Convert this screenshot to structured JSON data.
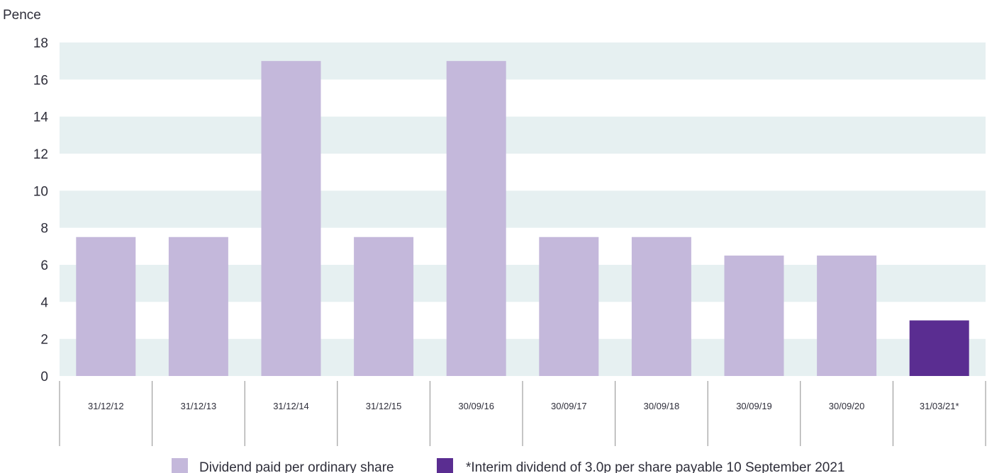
{
  "chart_data": {
    "type": "bar",
    "ylabel": "Pence",
    "ylim": [
      0,
      18
    ],
    "yticks": [
      0,
      2,
      4,
      6,
      8,
      10,
      12,
      14,
      16,
      18
    ],
    "grid": "alternating horizontal bands",
    "categories": [
      "31/12/12",
      "31/12/13",
      "31/12/14",
      "31/12/15",
      "30/09/16",
      "30/09/17",
      "30/09/18",
      "30/09/19",
      "30/09/20",
      "31/03/21*"
    ],
    "series": [
      {
        "name": "Dividend paid per ordinary share",
        "color": "#c4b8db",
        "values": [
          7.5,
          7.5,
          17.0,
          7.5,
          17.0,
          7.5,
          7.5,
          6.5,
          6.5,
          null
        ]
      },
      {
        "name": "*Interim dividend of 3.0p per share payable 10 September 2021",
        "color": "#5a2d91",
        "values": [
          null,
          null,
          null,
          null,
          null,
          null,
          null,
          null,
          null,
          3.0
        ]
      }
    ],
    "legend_position": "bottom-center",
    "colors": {
      "band": "#e6f0f1",
      "divider": "#8c8c8c",
      "text": "#2e2e3a"
    }
  }
}
